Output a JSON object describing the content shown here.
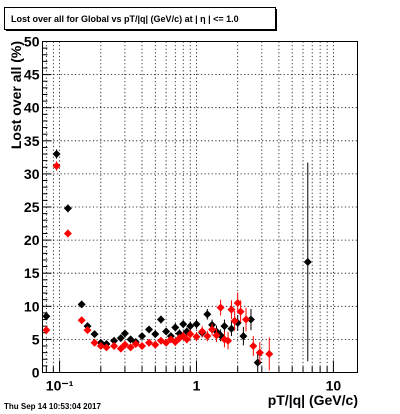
{
  "title": "Lost over all for Global vs pT/|q| (GeV/c) at |  η | <= 1.0",
  "timestamp": "Thu Sep 14 10:53:04 2017",
  "chart_data": {
    "type": "scatter",
    "title": "Lost over all for Global vs pT/|q| (GeV/c) at |  η | <= 1.0",
    "xlabel": "pT/|q| (GeV/c)",
    "ylabel": "Lost over all (%)",
    "xscale": "log",
    "xlim": [
      0.075,
      15
    ],
    "ylim": [
      0,
      50
    ],
    "x_tick_labels": [
      "10⁻¹",
      "1",
      "10"
    ],
    "y_ticks": [
      0,
      5,
      10,
      15,
      20,
      25,
      30,
      35,
      40,
      45,
      50
    ],
    "grid": true,
    "series": [
      {
        "color": "#000000",
        "marker": "diamond",
        "points": [
          [
            0.08,
            8.5,
            0.6
          ],
          [
            0.095,
            33.0,
            0.7
          ],
          [
            0.115,
            24.8,
            0.6
          ],
          [
            0.145,
            10.3,
            0.5
          ],
          [
            0.16,
            7.0,
            0.5
          ],
          [
            0.18,
            5.8,
            0.5
          ],
          [
            0.2,
            4.5,
            0.4
          ],
          [
            0.22,
            4.3,
            0.4
          ],
          [
            0.25,
            4.8,
            0.4
          ],
          [
            0.28,
            5.2,
            0.4
          ],
          [
            0.3,
            5.9,
            0.4
          ],
          [
            0.33,
            5.0,
            0.4
          ],
          [
            0.36,
            4.6,
            0.4
          ],
          [
            0.4,
            5.5,
            0.4
          ],
          [
            0.45,
            6.5,
            0.5
          ],
          [
            0.5,
            5.8,
            0.5
          ],
          [
            0.55,
            8.0,
            0.6
          ],
          [
            0.6,
            6.2,
            0.5
          ],
          [
            0.65,
            5.5,
            0.5
          ],
          [
            0.7,
            6.8,
            0.6
          ],
          [
            0.75,
            5.9,
            0.6
          ],
          [
            0.8,
            7.3,
            0.6
          ],
          [
            0.85,
            6.2,
            0.6
          ],
          [
            0.9,
            7.0,
            0.7
          ],
          [
            1.0,
            7.3,
            0.7
          ],
          [
            1.1,
            6.0,
            0.7
          ],
          [
            1.2,
            8.8,
            0.8
          ],
          [
            1.3,
            7.2,
            0.8
          ],
          [
            1.4,
            6.2,
            0.9
          ],
          [
            1.5,
            5.6,
            0.9
          ],
          [
            1.6,
            7.0,
            1.0
          ],
          [
            1.8,
            6.6,
            1.1
          ],
          [
            2.0,
            7.5,
            1.2
          ],
          [
            2.2,
            5.5,
            1.4
          ],
          [
            2.5,
            8.0,
            1.6
          ],
          [
            2.8,
            1.5,
            1.5
          ],
          [
            6.5,
            16.7,
            15.0
          ]
        ]
      },
      {
        "color": "#ff0000",
        "marker": "diamond",
        "points": [
          [
            0.08,
            6.4,
            0.6
          ],
          [
            0.095,
            31.2,
            0.7
          ],
          [
            0.115,
            21.0,
            0.6
          ],
          [
            0.145,
            7.9,
            0.5
          ],
          [
            0.16,
            6.4,
            0.5
          ],
          [
            0.18,
            4.5,
            0.4
          ],
          [
            0.2,
            4.0,
            0.4
          ],
          [
            0.22,
            3.8,
            0.4
          ],
          [
            0.25,
            4.0,
            0.4
          ],
          [
            0.28,
            3.6,
            0.4
          ],
          [
            0.3,
            4.2,
            0.4
          ],
          [
            0.33,
            3.8,
            0.4
          ],
          [
            0.36,
            4.3,
            0.4
          ],
          [
            0.4,
            4.0,
            0.4
          ],
          [
            0.45,
            4.5,
            0.5
          ],
          [
            0.5,
            4.2,
            0.5
          ],
          [
            0.55,
            4.8,
            0.5
          ],
          [
            0.6,
            4.5,
            0.5
          ],
          [
            0.65,
            5.0,
            0.5
          ],
          [
            0.7,
            4.6,
            0.6
          ],
          [
            0.75,
            5.2,
            0.6
          ],
          [
            0.8,
            5.5,
            0.6
          ],
          [
            0.85,
            5.0,
            0.6
          ],
          [
            0.9,
            5.8,
            0.7
          ],
          [
            1.0,
            5.4,
            0.7
          ],
          [
            1.1,
            6.2,
            0.8
          ],
          [
            1.2,
            5.5,
            0.8
          ],
          [
            1.3,
            6.5,
            0.9
          ],
          [
            1.4,
            5.6,
            1.0
          ],
          [
            1.5,
            9.8,
            1.2
          ],
          [
            1.6,
            5.0,
            1.2
          ],
          [
            1.7,
            4.8,
            1.3
          ],
          [
            1.8,
            9.5,
            1.4
          ],
          [
            1.9,
            7.8,
            1.5
          ],
          [
            2.0,
            10.5,
            1.6
          ],
          [
            2.1,
            9.2,
            1.7
          ],
          [
            2.3,
            8.0,
            1.8
          ],
          [
            2.6,
            4.0,
            1.5
          ],
          [
            2.9,
            3.0,
            1.6
          ],
          [
            3.4,
            2.8,
            2.5
          ]
        ]
      }
    ]
  }
}
